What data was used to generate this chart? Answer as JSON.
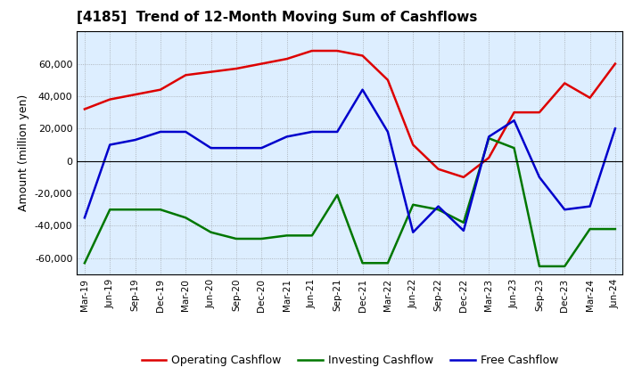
{
  "title": "[4185]  Trend of 12-Month Moving Sum of Cashflows",
  "ylabel": "Amount (million yen)",
  "background_color": "#ffffff",
  "plot_bg_color": "#ddeeff",
  "grid_color": "#888888",
  "ylim": [
    -70000,
    80000
  ],
  "yticks": [
    -60000,
    -40000,
    -20000,
    0,
    20000,
    40000,
    60000
  ],
  "x_dates": [
    "Mar-19",
    "Jun-19",
    "Sep-19",
    "Dec-19",
    "Mar-20",
    "Jun-20",
    "Sep-20",
    "Dec-20",
    "Mar-21",
    "Jun-21",
    "Sep-21",
    "Dec-21",
    "Mar-22",
    "Jun-22",
    "Sep-22",
    "Dec-22",
    "Mar-23",
    "Jun-23",
    "Sep-23",
    "Dec-23",
    "Mar-24",
    "Jun-24"
  ],
  "operating": [
    32000,
    38000,
    41000,
    44000,
    53000,
    55000,
    57000,
    60000,
    63000,
    68000,
    68000,
    65000,
    50000,
    10000,
    -5000,
    -10000,
    2000,
    30000,
    30000,
    48000,
    39000,
    60000
  ],
  "investing": [
    -63000,
    -30000,
    -30000,
    -30000,
    -35000,
    -44000,
    -48000,
    -48000,
    -46000,
    -46000,
    -21000,
    -63000,
    -63000,
    -27000,
    -30000,
    -38000,
    14000,
    8000,
    -65000,
    -65000,
    -42000,
    -42000
  ],
  "free": [
    -35000,
    10000,
    13000,
    18000,
    18000,
    8000,
    8000,
    8000,
    15000,
    18000,
    18000,
    44000,
    18000,
    -44000,
    -28000,
    -43000,
    15000,
    25000,
    -10000,
    -30000,
    -28000,
    20000
  ],
  "line_colors": {
    "operating": "#dd0000",
    "investing": "#007700",
    "free": "#0000cc"
  },
  "line_width": 1.8,
  "legend": {
    "operating": "Operating Cashflow",
    "investing": "Investing Cashflow",
    "free": "Free Cashflow"
  }
}
